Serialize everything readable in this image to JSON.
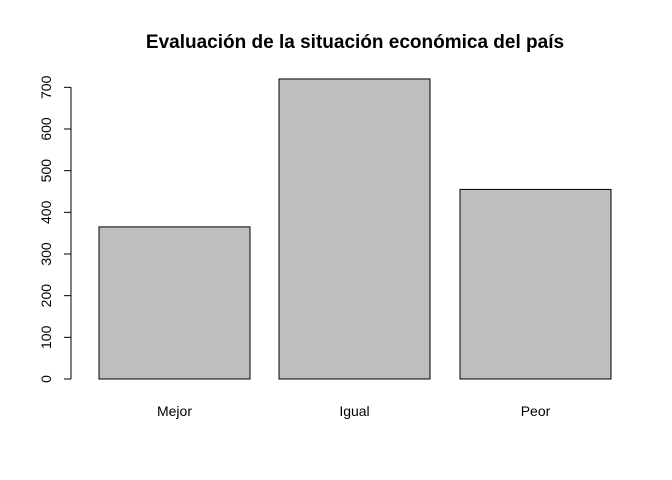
{
  "chart_data": {
    "type": "bar",
    "title": "Evaluación de la situación económica del país",
    "xlabel": "",
    "ylabel": "",
    "categories": [
      "Mejor",
      "Igual",
      "Peor"
    ],
    "values": [
      365,
      720,
      455
    ],
    "ylim": [
      0,
      720
    ],
    "yticks": [
      0,
      100,
      200,
      300,
      400,
      500,
      600,
      700
    ],
    "bar_fill": "#bebebe",
    "bar_stroke": "#000000",
    "grid": false,
    "legend": "none"
  }
}
